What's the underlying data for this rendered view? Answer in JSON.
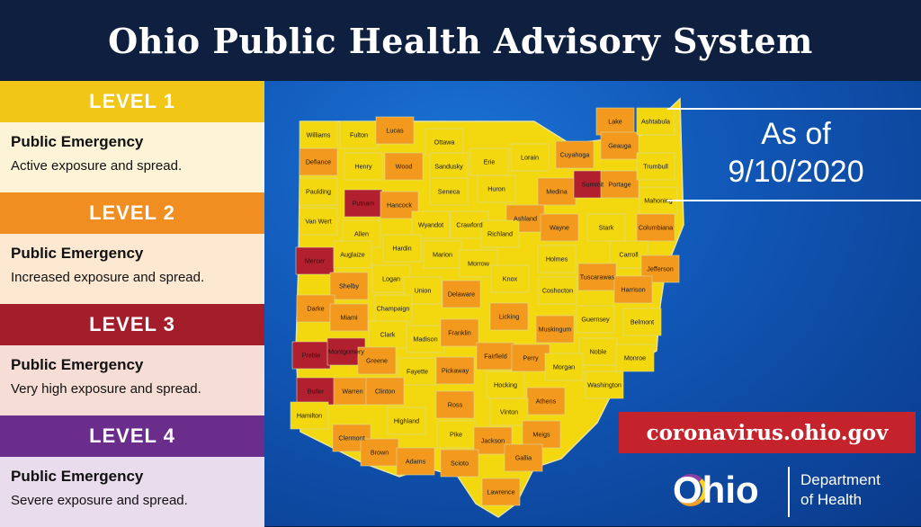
{
  "title": "Ohio Public Health Advisory System",
  "as_of_label": "As of",
  "as_of_date": "9/10/2020",
  "url": "coronavirus.ohio.gov",
  "logo": {
    "wordmark": "Ohio",
    "dept_line1": "Department",
    "dept_line2": "of Health"
  },
  "colors": {
    "level1": "#f2c616",
    "level2": "#f08e22",
    "level3": "#a31e2a",
    "level4": "#6b2d8c",
    "map_level1": "#f3d70f",
    "map_level2": "#f39a1e",
    "map_level3": "#b21f2e"
  },
  "levels": [
    {
      "label": "LEVEL 1",
      "title": "Public Emergency",
      "desc": "Active exposure and spread.",
      "color": "#f2c616",
      "body_bg": "#fdf4d8"
    },
    {
      "label": "LEVEL 2",
      "title": "Public Emergency",
      "desc": "Increased exposure and spread.",
      "color": "#f08e22",
      "body_bg": "#fde8d2"
    },
    {
      "label": "LEVEL 3",
      "title": "Public Emergency",
      "desc": "Very high exposure and spread.",
      "color": "#a31e2a",
      "body_bg": "#f6ddd6"
    },
    {
      "label": "LEVEL 4",
      "title": "Public Emergency",
      "desc": "Severe exposure and spread.",
      "color": "#6b2d8c",
      "body_bg": "#e9dcec"
    }
  ],
  "counties": [
    [
      "Williams",
      1
    ],
    [
      "Fulton",
      1
    ],
    [
      "Lucas",
      2
    ],
    [
      "Ottawa",
      1
    ],
    [
      "Erie",
      1
    ],
    [
      "Lorain",
      1
    ],
    [
      "Cuyahoga",
      2
    ],
    [
      "Lake",
      2
    ],
    [
      "Geauga",
      2
    ],
    [
      "Ashtabula",
      1
    ],
    [
      "Defiance",
      2
    ],
    [
      "Henry",
      1
    ],
    [
      "Wood",
      2
    ],
    [
      "Sandusky",
      1
    ],
    [
      "Huron",
      1
    ],
    [
      "Medina",
      2
    ],
    [
      "Summit",
      3
    ],
    [
      "Portage",
      2
    ],
    [
      "Trumbull",
      1
    ],
    [
      "Mahoning",
      1
    ],
    [
      "Paulding",
      1
    ],
    [
      "Putnam",
      3
    ],
    [
      "Hancock",
      2
    ],
    [
      "Seneca",
      1
    ],
    [
      "Ashland",
      2
    ],
    [
      "Wayne",
      2
    ],
    [
      "Stark",
      1
    ],
    [
      "Columbiana",
      2
    ],
    [
      "Wyandot",
      1
    ],
    [
      "Crawford",
      1
    ],
    [
      "Van Wert",
      1
    ],
    [
      "Allen",
      1
    ],
    [
      "Hardin",
      1
    ],
    [
      "Richland",
      1
    ],
    [
      "Marion",
      1
    ],
    [
      "Morrow",
      1
    ],
    [
      "Holmes",
      1
    ],
    [
      "Carroll",
      1
    ],
    [
      "Tuscarawas",
      2
    ],
    [
      "Jefferson",
      2
    ],
    [
      "Mercer",
      3
    ],
    [
      "Auglaize",
      1
    ],
    [
      "Logan",
      1
    ],
    [
      "Union",
      1
    ],
    [
      "Delaware",
      2
    ],
    [
      "Knox",
      1
    ],
    [
      "Coshocton",
      1
    ],
    [
      "Harrison",
      2
    ],
    [
      "Shelby",
      2
    ],
    [
      "Champaign",
      1
    ],
    [
      "Darke",
      2
    ],
    [
      "Miami",
      2
    ],
    [
      "Licking",
      2
    ],
    [
      "Guernsey",
      1
    ],
    [
      "Belmont",
      1
    ],
    [
      "Muskingum",
      2
    ],
    [
      "Clark",
      1
    ],
    [
      "Madison",
      1
    ],
    [
      "Franklin",
      2
    ],
    [
      "Noble",
      1
    ],
    [
      "Preble",
      3
    ],
    [
      "Montgomery",
      3
    ],
    [
      "Greene",
      2
    ],
    [
      "Fayette",
      1
    ],
    [
      "Pickaway",
      2
    ],
    [
      "Fairfield",
      2
    ],
    [
      "Perry",
      2
    ],
    [
      "Morgan",
      1
    ],
    [
      "Monroe",
      1
    ],
    [
      "Washington",
      1
    ],
    [
      "Butler",
      3
    ],
    [
      "Warren",
      2
    ],
    [
      "Clinton",
      2
    ],
    [
      "Hocking",
      1
    ],
    [
      "Ross",
      2
    ],
    [
      "Athens",
      2
    ],
    [
      "Vinton",
      1
    ],
    [
      "Hamilton",
      1
    ],
    [
      "Highland",
      1
    ],
    [
      "Clermont",
      2
    ],
    [
      "Brown",
      2
    ],
    [
      "Adams",
      2
    ],
    [
      "Pike",
      1
    ],
    [
      "Jackson",
      2
    ],
    [
      "Meigs",
      2
    ],
    [
      "Gallia",
      2
    ],
    [
      "Scioto",
      2
    ],
    [
      "Lawrence",
      2
    ]
  ]
}
